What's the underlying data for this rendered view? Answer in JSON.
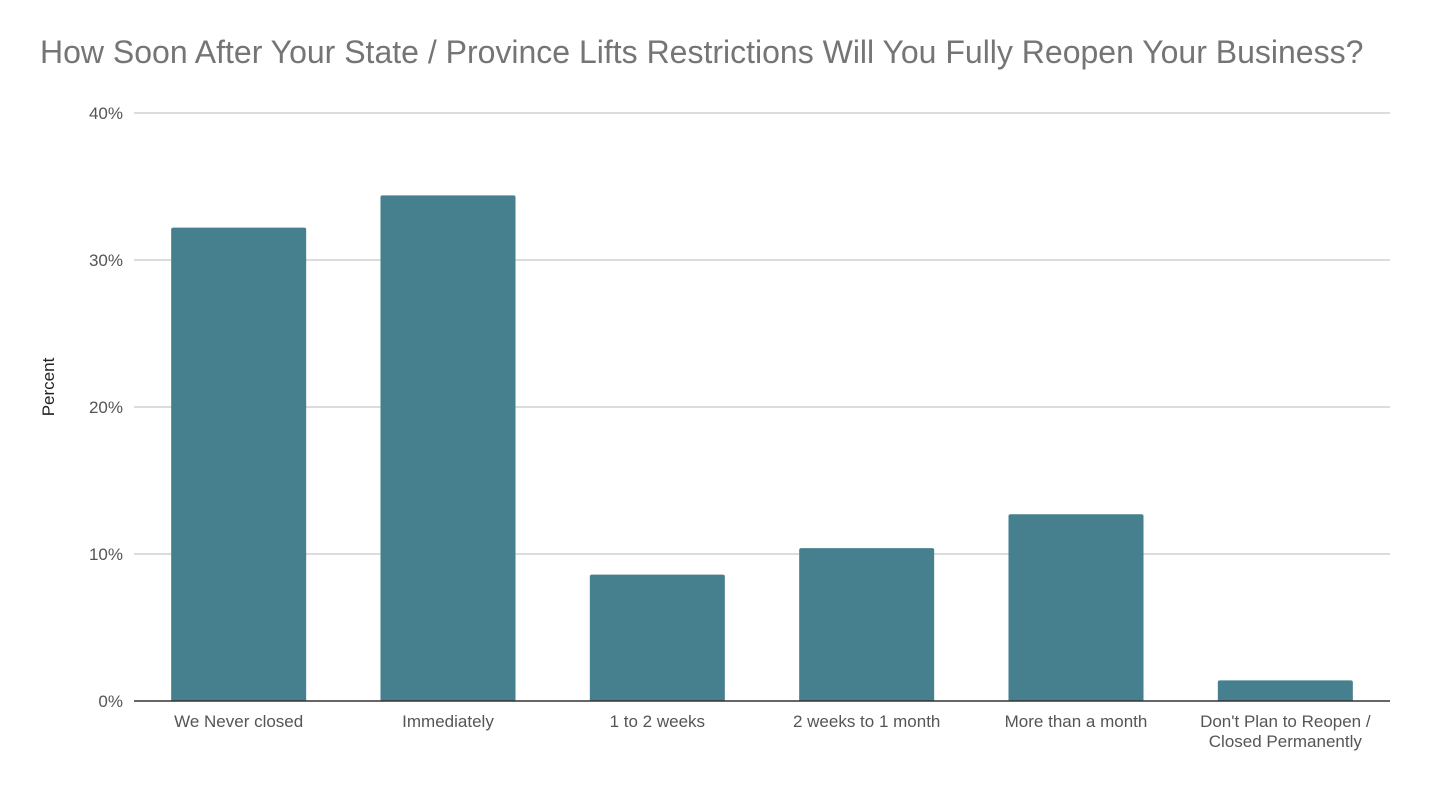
{
  "chart_data": {
    "type": "bar",
    "title": "How Soon After Your State / Province Lifts Restrictions Will You Fully Reopen Your Business?",
    "xlabel": "",
    "ylabel": "Percent",
    "categories": [
      [
        "We Never closed"
      ],
      [
        "Immediately"
      ],
      [
        "1 to 2 weeks"
      ],
      [
        "2 weeks to 1 month"
      ],
      [
        "More than a month"
      ],
      [
        "Don't Plan to Reopen /",
        "Closed Permanently"
      ]
    ],
    "values": [
      32.2,
      34.4,
      8.6,
      10.4,
      12.7,
      1.4
    ],
    "ylim": [
      0,
      40
    ],
    "yticks": [
      "0%",
      "10%",
      "20%",
      "30%",
      "40%"
    ],
    "grid": true,
    "legend": "none",
    "bar_color": "#46808E",
    "grid_color": "#C8C8C8",
    "axis_color": "#333333"
  }
}
